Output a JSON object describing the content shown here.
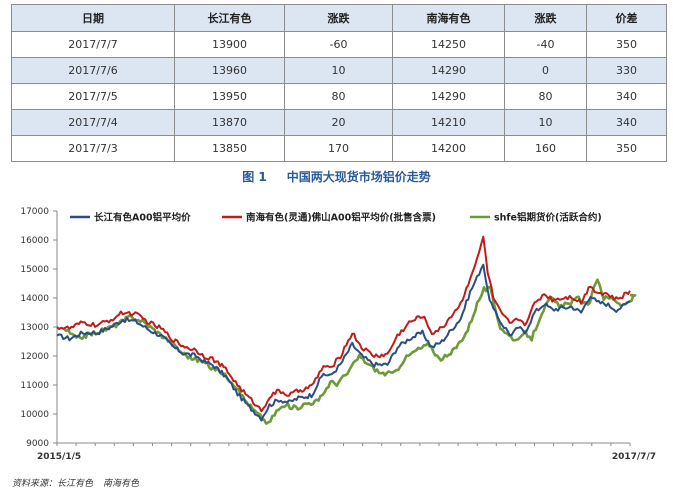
{
  "table": {
    "headers": [
      "日期",
      "长江有色",
      "涨跌",
      "南海有色",
      "涨跌",
      "价差"
    ],
    "rows": [
      [
        "2017/7/7",
        "13900",
        "-60",
        "14250",
        "-40",
        "350"
      ],
      [
        "2017/7/6",
        "13960",
        "10",
        "14290",
        "0",
        "330"
      ],
      [
        "2017/7/5",
        "13950",
        "80",
        "14290",
        "80",
        "340"
      ],
      [
        "2017/7/4",
        "13870",
        "20",
        "14210",
        "10",
        "340"
      ],
      [
        "2017/7/3",
        "13850",
        "170",
        "14200",
        "160",
        "350"
      ]
    ]
  },
  "figure": {
    "number": "图 1",
    "caption": "中国两大现货市场铝价走势"
  },
  "source": {
    "label": "资料来源：长江有色",
    "second": "南海有色"
  },
  "chart_data": {
    "type": "line",
    "ylim": [
      9000,
      17000
    ],
    "yticks": [
      "17000",
      "16000",
      "15000",
      "14000",
      "13000",
      "12000",
      "11000",
      "10000",
      "9000"
    ],
    "x_range": [
      "2015/1/5",
      "2017/7/7"
    ],
    "xtick_labels": [
      "2015/1/5",
      "2017/7/7"
    ],
    "legend_position": "top",
    "grid": false,
    "series": [
      {
        "name": "长江有色A00铝平均价",
        "color": "#2a4e84",
        "dx": 0,
        "values": [
          [
            "2015-01-05",
            12700
          ],
          [
            "2015-01-25",
            12600
          ],
          [
            "2015-02-15",
            12800
          ],
          [
            "2015-03-10",
            12800
          ],
          [
            "2015-04-01",
            13000
          ],
          [
            "2015-04-20",
            13250
          ],
          [
            "2015-05-10",
            13200
          ],
          [
            "2015-06-01",
            12900
          ],
          [
            "2015-06-20",
            12700
          ],
          [
            "2015-07-10",
            12300
          ],
          [
            "2015-07-25",
            12100
          ],
          [
            "2015-08-15",
            12000
          ],
          [
            "2015-08-28",
            11800
          ],
          [
            "2015-09-10",
            11700
          ],
          [
            "2015-10-01",
            11300
          ],
          [
            "2015-10-20",
            10700
          ],
          [
            "2015-11-05",
            10300
          ],
          [
            "2015-11-20",
            10000
          ],
          [
            "2015-11-27",
            9850
          ],
          [
            "2015-12-10",
            10300
          ],
          [
            "2015-12-25",
            10500
          ],
          [
            "2016-01-10",
            10400
          ],
          [
            "2016-01-25",
            10550
          ],
          [
            "2016-02-15",
            10650
          ],
          [
            "2016-03-05",
            11400
          ],
          [
            "2016-03-15",
            11300
          ],
          [
            "2016-04-01",
            11700
          ],
          [
            "2016-04-20",
            12400
          ],
          [
            "2016-05-05",
            12000
          ],
          [
            "2016-05-25",
            11700
          ],
          [
            "2016-06-15",
            11700
          ],
          [
            "2016-07-01",
            12300
          ],
          [
            "2016-07-20",
            12600
          ],
          [
            "2016-08-10",
            12800
          ],
          [
            "2016-08-25",
            12300
          ],
          [
            "2016-09-10",
            12500
          ],
          [
            "2016-09-25",
            12900
          ],
          [
            "2016-10-10",
            13300
          ],
          [
            "2016-10-25",
            14200
          ],
          [
            "2016-11-05",
            14700
          ],
          [
            "2016-11-15",
            15200
          ],
          [
            "2016-11-22",
            14200
          ],
          [
            "2016-12-01",
            13600
          ],
          [
            "2016-12-15",
            13100
          ],
          [
            "2016-12-30",
            12700
          ],
          [
            "2017-01-10",
            13000
          ],
          [
            "2017-01-20",
            12800
          ],
          [
            "2017-02-05",
            13500
          ],
          [
            "2017-02-20",
            13800
          ],
          [
            "2017-03-05",
            13600
          ],
          [
            "2017-03-20",
            13650
          ],
          [
            "2017-04-05",
            13700
          ],
          [
            "2017-04-20",
            13500
          ],
          [
            "2017-05-05",
            14100
          ],
          [
            "2017-05-15",
            13850
          ],
          [
            "2017-05-30",
            13800
          ],
          [
            "2017-06-15",
            13600
          ],
          [
            "2017-06-25",
            13700
          ],
          [
            "2017-07-07",
            13900
          ]
        ]
      },
      {
        "name": "南海有色(灵通)佛山A00铝平均价(批售含票)",
        "color": "#c41a1a",
        "dx": 0,
        "values": [
          [
            "2015-01-05",
            13000
          ],
          [
            "2015-01-25",
            12950
          ],
          [
            "2015-02-15",
            13150
          ],
          [
            "2015-03-10",
            13050
          ],
          [
            "2015-04-01",
            13250
          ],
          [
            "2015-04-20",
            13500
          ],
          [
            "2015-05-10",
            13450
          ],
          [
            "2015-06-01",
            13150
          ],
          [
            "2015-06-20",
            12950
          ],
          [
            "2015-07-10",
            12550
          ],
          [
            "2015-07-25",
            12350
          ],
          [
            "2015-08-15",
            12200
          ],
          [
            "2015-08-28",
            12000
          ],
          [
            "2015-09-10",
            11900
          ],
          [
            "2015-10-01",
            11550
          ],
          [
            "2015-10-20",
            11000
          ],
          [
            "2015-11-05",
            10600
          ],
          [
            "2015-11-20",
            10300
          ],
          [
            "2015-11-27",
            10100
          ],
          [
            "2015-12-10",
            10600
          ],
          [
            "2015-12-25",
            10800
          ],
          [
            "2016-01-10",
            10650
          ],
          [
            "2016-01-25",
            10800
          ],
          [
            "2016-02-15",
            10950
          ],
          [
            "2016-03-05",
            11650
          ],
          [
            "2016-03-15",
            11550
          ],
          [
            "2016-04-01",
            12000
          ],
          [
            "2016-04-20",
            12800
          ],
          [
            "2016-05-05",
            12300
          ],
          [
            "2016-05-25",
            12000
          ],
          [
            "2016-06-15",
            12050
          ],
          [
            "2016-07-01",
            12700
          ],
          [
            "2016-07-20",
            13150
          ],
          [
            "2016-08-10",
            13400
          ],
          [
            "2016-08-25",
            12800
          ],
          [
            "2016-09-10",
            12950
          ],
          [
            "2016-09-25",
            13400
          ],
          [
            "2016-10-10",
            13800
          ],
          [
            "2016-10-25",
            14700
          ],
          [
            "2016-11-05",
            15300
          ],
          [
            "2016-11-15",
            16100
          ],
          [
            "2016-11-22",
            14900
          ],
          [
            "2016-12-01",
            14000
          ],
          [
            "2016-12-15",
            13400
          ],
          [
            "2016-12-30",
            13100
          ],
          [
            "2017-01-10",
            13300
          ],
          [
            "2017-01-20",
            13100
          ],
          [
            "2017-02-05",
            13800
          ],
          [
            "2017-02-20",
            14150
          ],
          [
            "2017-03-05",
            13950
          ],
          [
            "2017-03-20",
            14000
          ],
          [
            "2017-04-05",
            14050
          ],
          [
            "2017-04-20",
            13850
          ],
          [
            "2017-05-05",
            14450
          ],
          [
            "2017-05-15",
            14200
          ],
          [
            "2017-05-30",
            14150
          ],
          [
            "2017-06-15",
            13950
          ],
          [
            "2017-06-25",
            14050
          ],
          [
            "2017-07-07",
            14250
          ]
        ]
      },
      {
        "name": "shfe铝期货价(活跃合约)",
        "color": "#6e9a3a",
        "dx": 7,
        "values": [
          [
            "2015-01-05",
            12950
          ],
          [
            "2015-01-25",
            12600
          ],
          [
            "2015-02-15",
            12750
          ],
          [
            "2015-03-10",
            12900
          ],
          [
            "2015-04-01",
            13100
          ],
          [
            "2015-04-20",
            13350
          ],
          [
            "2015-05-10",
            13200
          ],
          [
            "2015-06-01",
            12850
          ],
          [
            "2015-06-20",
            12550
          ],
          [
            "2015-07-10",
            12150
          ],
          [
            "2015-07-25",
            11950
          ],
          [
            "2015-08-15",
            11800
          ],
          [
            "2015-08-28",
            11600
          ],
          [
            "2015-09-10",
            11500
          ],
          [
            "2015-10-01",
            11100
          ],
          [
            "2015-10-20",
            10500
          ],
          [
            "2015-11-05",
            10100
          ],
          [
            "2015-11-20",
            9800
          ],
          [
            "2015-11-27",
            9650
          ],
          [
            "2015-12-10",
            10100
          ],
          [
            "2015-12-25",
            10300
          ],
          [
            "2016-01-10",
            10200
          ],
          [
            "2016-01-25",
            10350
          ],
          [
            "2016-02-15",
            10450
          ],
          [
            "2016-03-05",
            11100
          ],
          [
            "2016-03-15",
            11050
          ],
          [
            "2016-04-01",
            11400
          ],
          [
            "2016-04-20",
            12000
          ],
          [
            "2016-05-05",
            11700
          ],
          [
            "2016-05-25",
            11400
          ],
          [
            "2016-06-15",
            11400
          ],
          [
            "2016-07-01",
            11900
          ],
          [
            "2016-07-20",
            12200
          ],
          [
            "2016-08-10",
            12400
          ],
          [
            "2016-08-25",
            11900
          ],
          [
            "2016-09-10",
            12000
          ],
          [
            "2016-09-25",
            12400
          ],
          [
            "2016-10-10",
            12900
          ],
          [
            "2016-10-25",
            13800
          ],
          [
            "2016-11-05",
            14300
          ],
          [
            "2016-11-15",
            14300
          ],
          [
            "2016-11-22",
            13700
          ],
          [
            "2016-12-01",
            13000
          ],
          [
            "2016-12-15",
            12700
          ],
          [
            "2016-12-30",
            12500
          ],
          [
            "2017-01-10",
            12800
          ],
          [
            "2017-01-20",
            12600
          ],
          [
            "2017-02-05",
            13500
          ],
          [
            "2017-02-20",
            14000
          ],
          [
            "2017-03-05",
            13700
          ],
          [
            "2017-03-20",
            13800
          ],
          [
            "2017-04-05",
            14000
          ],
          [
            "2017-04-20",
            13700
          ],
          [
            "2017-05-05",
            14700
          ],
          [
            "2017-05-15",
            14000
          ],
          [
            "2017-05-30",
            14000
          ],
          [
            "2017-06-15",
            13700
          ],
          [
            "2017-06-25",
            13900
          ],
          [
            "2017-07-07",
            14100
          ]
        ]
      }
    ]
  }
}
